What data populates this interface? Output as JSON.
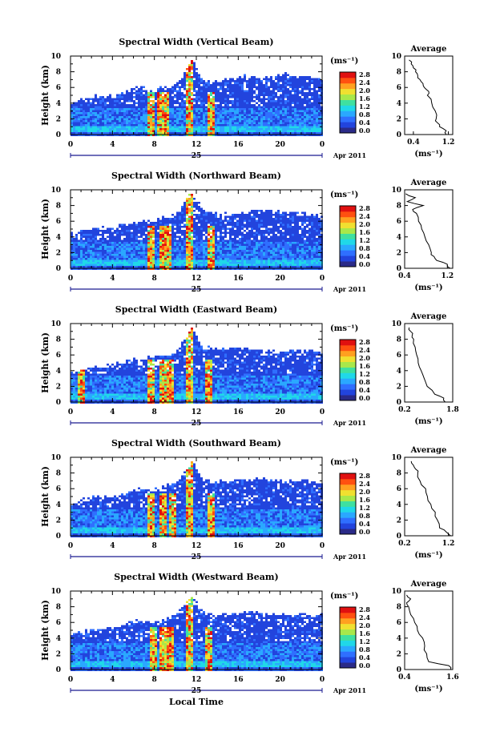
{
  "shared": {
    "xlabel": "Local Time",
    "ylabel": "Height (km)",
    "date_day": "25",
    "date_month": "Apr 2011",
    "unit_label": "(ms⁻¹)",
    "xticks": [
      "0",
      "4",
      "8",
      "12",
      "16",
      "20",
      "0"
    ],
    "yticks": [
      "0",
      "2",
      "4",
      "6",
      "8",
      "10"
    ],
    "colorbar_ticks": [
      "0.0",
      "0.4",
      "0.8",
      "1.2",
      "1.6",
      "2.0",
      "2.4",
      "2.8"
    ],
    "avg_title": "Average",
    "avg_xlabel": "(ms⁻¹)",
    "colormap": [
      "#2a2a88",
      "#2244dd",
      "#2f6fff",
      "#2aa8ff",
      "#20d8e8",
      "#3fe0a0",
      "#a8e84a",
      "#f0e030",
      "#ffa020",
      "#ff5010",
      "#e01010"
    ]
  },
  "chart_data": [
    {
      "type": "heatmap",
      "title": "Spectral Width (Vertical Beam)",
      "x_range_hours": [
        0,
        24
      ],
      "y_range_km": [
        0,
        10
      ],
      "colorbar_range": [
        0.0,
        2.8
      ],
      "cloud_top_km": [
        [
          0,
          4.2
        ],
        [
          2,
          5.0
        ],
        [
          4,
          5.0
        ],
        [
          6,
          6.0
        ],
        [
          8,
          5.8
        ],
        [
          10,
          6.5
        ],
        [
          11,
          8.5
        ],
        [
          11.5,
          9.8
        ],
        [
          12.5,
          7.0
        ],
        [
          14,
          6.8
        ],
        [
          16,
          7.5
        ],
        [
          18,
          7.2
        ],
        [
          20,
          7.8
        ],
        [
          22,
          7.5
        ],
        [
          24,
          7.0
        ]
      ],
      "convective_cells_hours": [
        7.5,
        8.5,
        9.0,
        11.2,
        13.2
      ],
      "average_profile": {
        "xticks": [
          "0.4",
          "1.2"
        ],
        "x_range": [
          0.2,
          1.3
        ],
        "height_km": [
          0,
          0.5,
          1,
          1.5,
          2,
          3,
          4,
          5,
          5.5,
          6,
          6.5,
          7,
          7.5,
          8,
          8.5,
          9,
          9.5
        ],
        "value": [
          1.15,
          1.15,
          1.0,
          0.95,
          0.92,
          0.9,
          0.82,
          0.72,
          0.75,
          0.65,
          0.62,
          0.55,
          0.5,
          0.45,
          0.4,
          0.35,
          0.3
        ]
      }
    },
    {
      "type": "heatmap",
      "title": "Spectral Width (Northward Beam)",
      "x_range_hours": [
        0,
        24
      ],
      "y_range_km": [
        0,
        10
      ],
      "colorbar_range": [
        0.0,
        2.8
      ],
      "cloud_top_km": [
        [
          0,
          4.5
        ],
        [
          2,
          5.2
        ],
        [
          4,
          5.3
        ],
        [
          6,
          6.0
        ],
        [
          8,
          6.2
        ],
        [
          10,
          7.0
        ],
        [
          11,
          9.0
        ],
        [
          11.5,
          9.8
        ],
        [
          12.5,
          7.5
        ],
        [
          14,
          7.0
        ],
        [
          16,
          7.0
        ],
        [
          18,
          7.5
        ],
        [
          20,
          7.2
        ],
        [
          22,
          7.0
        ],
        [
          24,
          6.8
        ]
      ],
      "convective_cells_hours": [
        7.5,
        8.8,
        9.2,
        11.3,
        13.2
      ],
      "average_profile": {
        "xticks": [
          "0.4",
          "1.2"
        ],
        "x_range": [
          0.4,
          1.3
        ],
        "height_km": [
          0,
          0.5,
          1,
          1.5,
          2,
          3,
          4,
          5,
          6,
          7,
          7.5,
          8,
          8.5,
          9,
          9.5
        ],
        "value": [
          1.25,
          1.2,
          1.0,
          0.95,
          0.9,
          0.85,
          0.78,
          0.72,
          0.66,
          0.62,
          0.55,
          0.75,
          0.45,
          0.6,
          0.42
        ]
      }
    },
    {
      "type": "heatmap",
      "title": "Spectral Width (Eastward Beam)",
      "x_range_hours": [
        0,
        24
      ],
      "y_range_km": [
        0,
        10
      ],
      "colorbar_range": [
        0.0,
        2.8
      ],
      "cloud_top_km": [
        [
          0,
          4.0
        ],
        [
          2,
          4.5
        ],
        [
          4,
          4.8
        ],
        [
          6,
          5.5
        ],
        [
          8,
          5.8
        ],
        [
          10,
          6.5
        ],
        [
          11,
          8.8
        ],
        [
          11.5,
          9.6
        ],
        [
          12.5,
          7.0
        ],
        [
          14,
          6.8
        ],
        [
          16,
          7.0
        ],
        [
          18,
          6.8
        ],
        [
          20,
          6.5
        ],
        [
          22,
          6.8
        ],
        [
          24,
          6.5
        ]
      ],
      "convective_cells_hours": [
        1.0,
        7.6,
        8.8,
        9.4,
        11.2,
        13.0
      ],
      "average_profile": {
        "xticks": [
          "0.2",
          "1.8"
        ],
        "x_range": [
          0.2,
          1.8
        ],
        "height_km": [
          0,
          0.5,
          1,
          2,
          3,
          4,
          5,
          6,
          7,
          8,
          8.5,
          9,
          9.5
        ],
        "value": [
          1.55,
          1.5,
          1.2,
          0.95,
          0.85,
          0.75,
          0.65,
          0.6,
          0.55,
          0.5,
          0.45,
          0.4,
          0.35
        ]
      }
    },
    {
      "type": "heatmap",
      "title": "Spectral Width (Southward Beam)",
      "x_range_hours": [
        0,
        24
      ],
      "y_range_km": [
        0,
        10
      ],
      "colorbar_range": [
        0.0,
        2.8
      ],
      "cloud_top_km": [
        [
          0,
          4.2
        ],
        [
          2,
          5.0
        ],
        [
          4,
          5.2
        ],
        [
          6,
          6.0
        ],
        [
          8,
          6.0
        ],
        [
          10,
          7.0
        ],
        [
          11,
          8.5
        ],
        [
          11.5,
          9.5
        ],
        [
          12.5,
          7.2
        ],
        [
          14,
          7.0
        ],
        [
          16,
          7.2
        ],
        [
          18,
          7.5
        ],
        [
          20,
          7.0
        ],
        [
          22,
          7.2
        ],
        [
          24,
          7.0
        ]
      ],
      "convective_cells_hours": [
        7.6,
        8.8,
        9.6,
        11.2,
        13.3
      ],
      "average_profile": {
        "xticks": [
          "0.2",
          "1.2"
        ],
        "x_range": [
          0.2,
          1.3
        ],
        "height_km": [
          0,
          0.5,
          1,
          2,
          3,
          4,
          5,
          6,
          7,
          8,
          8.5,
          9,
          9.5
        ],
        "value": [
          1.25,
          1.15,
          1.0,
          0.95,
          0.9,
          0.8,
          0.72,
          0.68,
          0.55,
          0.5,
          0.45,
          0.4,
          0.35
        ]
      }
    },
    {
      "type": "heatmap",
      "title": "Spectral Width (Westward Beam)",
      "x_range_hours": [
        0,
        24
      ],
      "y_range_km": [
        0,
        10
      ],
      "colorbar_range": [
        0.0,
        2.8
      ],
      "cloud_top_km": [
        [
          0,
          4.5
        ],
        [
          2,
          5.2
        ],
        [
          4,
          5.5
        ],
        [
          6,
          6.2
        ],
        [
          8,
          6.2
        ],
        [
          10,
          7.0
        ],
        [
          11,
          8.8
        ],
        [
          11.5,
          9.7
        ],
        [
          12.5,
          7.2
        ],
        [
          14,
          7.0
        ],
        [
          16,
          7.5
        ],
        [
          18,
          7.2
        ],
        [
          20,
          7.0
        ],
        [
          22,
          7.2
        ],
        [
          24,
          7.0
        ]
      ],
      "convective_cells_hours": [
        7.7,
        8.8,
        9.4,
        11.2,
        13.1
      ],
      "average_profile": {
        "xticks": [
          "0.4",
          "1.6"
        ],
        "x_range": [
          0.4,
          1.6
        ],
        "height_km": [
          0,
          0.5,
          1,
          2,
          3,
          4,
          5,
          6,
          7,
          8,
          8.5,
          9,
          9.5
        ],
        "value": [
          1.55,
          1.5,
          1.0,
          0.95,
          0.9,
          0.85,
          0.72,
          0.65,
          0.55,
          0.5,
          0.45,
          0.55,
          0.45
        ]
      }
    }
  ]
}
